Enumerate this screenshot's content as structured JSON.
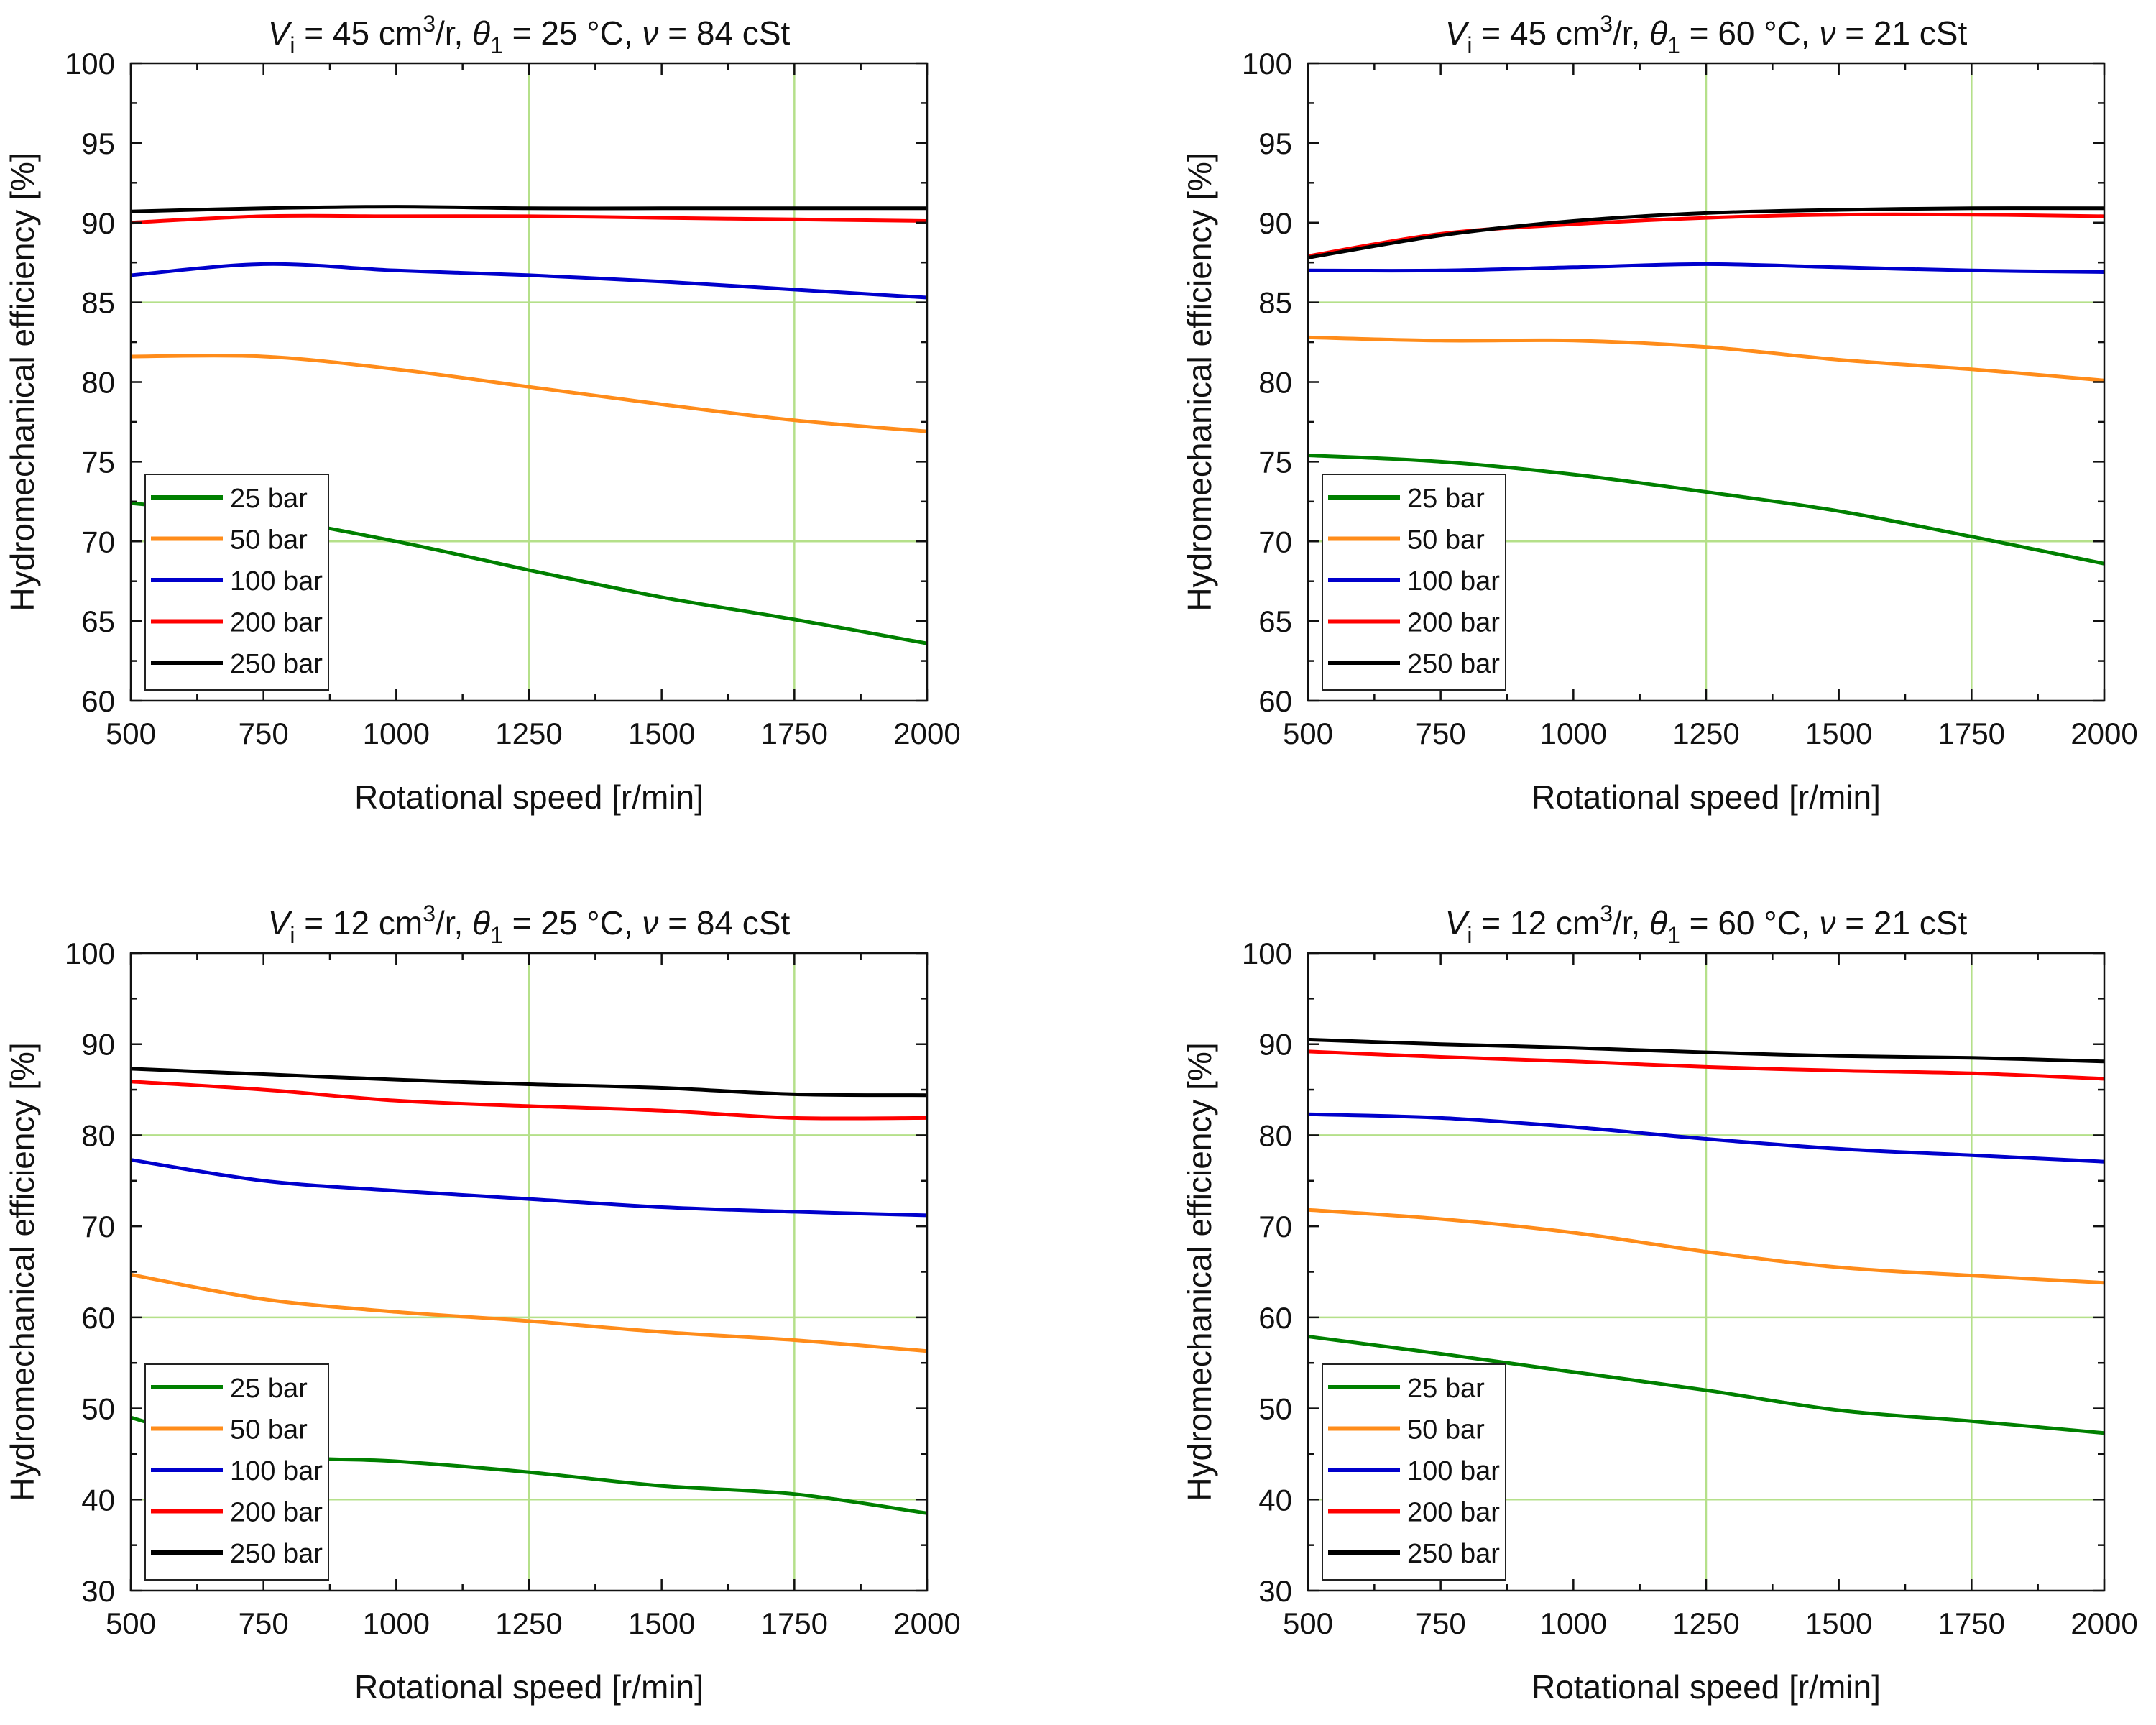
{
  "chart_data": [
    {
      "type": "line",
      "title_parts": [
        "V",
        "i",
        " = 45 cm",
        "3",
        "/r, ",
        "θ",
        "1",
        " = 25 °C, ",
        "ν",
        " = 84 cSt"
      ],
      "xlabel": "Rotational speed [r/min]",
      "ylabel": "Hydromechanical efficiency [%]",
      "xlim": [
        500,
        2000
      ],
      "ylim": [
        60,
        100
      ],
      "x_ticks": [
        500,
        750,
        1000,
        1250,
        1500,
        1750,
        2000
      ],
      "y_ticks": [
        60,
        65,
        70,
        75,
        80,
        85,
        90,
        95,
        100
      ],
      "grid": "vertical lines at 1250 and 1750, horizontal line at 70 and 85",
      "legend_position": "bottom-left",
      "series": [
        {
          "name": "25 bar",
          "color": "#008000",
          "x": [
            500,
            750,
            1000,
            1250,
            1500,
            1750,
            2000
          ],
          "y": [
            72.4,
            71.5,
            70.0,
            68.2,
            66.5,
            65.1,
            63.6
          ]
        },
        {
          "name": "50 bar",
          "color": "#ff8c1a",
          "x": [
            500,
            750,
            1000,
            1250,
            1500,
            1750,
            2000
          ],
          "y": [
            81.6,
            81.6,
            80.8,
            79.7,
            78.6,
            77.6,
            76.9
          ]
        },
        {
          "name": "100 bar",
          "color": "#0000cc",
          "x": [
            500,
            750,
            1000,
            1250,
            1500,
            1750,
            2000
          ],
          "y": [
            86.7,
            87.4,
            87.0,
            86.7,
            86.3,
            85.8,
            85.3
          ]
        },
        {
          "name": "200 bar",
          "color": "#ff0000",
          "x": [
            500,
            750,
            1000,
            1250,
            1500,
            1750,
            2000
          ],
          "y": [
            90.0,
            90.4,
            90.4,
            90.4,
            90.3,
            90.2,
            90.1
          ]
        },
        {
          "name": "250 bar",
          "color": "#000000",
          "x": [
            500,
            750,
            1000,
            1250,
            1500,
            1750,
            2000
          ],
          "y": [
            90.7,
            90.9,
            91.0,
            90.9,
            90.9,
            90.9,
            90.9
          ]
        }
      ]
    },
    {
      "type": "line",
      "title_parts": [
        "V",
        "i",
        " = 45 cm",
        "3",
        "/r, ",
        "θ",
        "1",
        " = 60 °C, ",
        "ν",
        " = 21 cSt"
      ],
      "xlabel": "Rotational speed [r/min]",
      "ylabel": "Hydromechanical efficiency [%]",
      "xlim": [
        500,
        2000
      ],
      "ylim": [
        60,
        100
      ],
      "x_ticks": [
        500,
        750,
        1000,
        1250,
        1500,
        1750,
        2000
      ],
      "y_ticks": [
        60,
        65,
        70,
        75,
        80,
        85,
        90,
        95,
        100
      ],
      "grid": "vertical lines at 1250 and 1750, horizontal line at 70 and 85",
      "legend_position": "bottom-left",
      "series": [
        {
          "name": "25 bar",
          "color": "#008000",
          "x": [
            500,
            750,
            1000,
            1250,
            1500,
            1750,
            2000
          ],
          "y": [
            75.4,
            75.0,
            74.2,
            73.1,
            71.9,
            70.3,
            68.6
          ]
        },
        {
          "name": "50 bar",
          "color": "#ff8c1a",
          "x": [
            500,
            750,
            1000,
            1250,
            1500,
            1750,
            2000
          ],
          "y": [
            82.8,
            82.6,
            82.6,
            82.2,
            81.4,
            80.8,
            80.1
          ]
        },
        {
          "name": "100 bar",
          "color": "#0000cc",
          "x": [
            500,
            750,
            1000,
            1250,
            1500,
            1750,
            2000
          ],
          "y": [
            87.0,
            87.0,
            87.2,
            87.4,
            87.2,
            87.0,
            86.9
          ]
        },
        {
          "name": "200 bar",
          "color": "#ff0000",
          "x": [
            500,
            750,
            1000,
            1250,
            1500,
            1750,
            2000
          ],
          "y": [
            87.9,
            89.3,
            89.9,
            90.3,
            90.5,
            90.5,
            90.4
          ]
        },
        {
          "name": "250 bar",
          "color": "#000000",
          "x": [
            500,
            750,
            1000,
            1250,
            1500,
            1750,
            2000
          ],
          "y": [
            87.8,
            89.2,
            90.1,
            90.6,
            90.8,
            90.9,
            90.9
          ]
        }
      ]
    },
    {
      "type": "line",
      "title_parts": [
        "V",
        "i",
        " = 12 cm",
        "3",
        "/r, ",
        "θ",
        "1",
        " = 25 °C, ",
        "ν",
        " = 84 cSt"
      ],
      "xlabel": "Rotational speed [r/min]",
      "ylabel": "Hydromechanical efficiency [%]",
      "xlim": [
        500,
        2000
      ],
      "ylim": [
        30,
        100
      ],
      "x_ticks": [
        500,
        750,
        1000,
        1250,
        1500,
        1750,
        2000
      ],
      "y_ticks": [
        30,
        40,
        50,
        60,
        70,
        80,
        90,
        100
      ],
      "grid": "vertical lines at 1250 and 1750, horizontal lines at 40, 60 and 80",
      "legend_position": "bottom-left",
      "series": [
        {
          "name": "25 bar",
          "color": "#008000",
          "x": [
            500,
            750,
            1000,
            1250,
            1500,
            1750,
            2000
          ],
          "y": [
            49.0,
            45.0,
            44.2,
            43.0,
            41.5,
            40.6,
            38.5
          ]
        },
        {
          "name": "50 bar",
          "color": "#ff8c1a",
          "x": [
            500,
            750,
            1000,
            1250,
            1500,
            1750,
            2000
          ],
          "y": [
            64.7,
            62.0,
            60.6,
            59.6,
            58.4,
            57.5,
            56.3
          ]
        },
        {
          "name": "100 bar",
          "color": "#0000cc",
          "x": [
            500,
            750,
            1000,
            1250,
            1500,
            1750,
            2000
          ],
          "y": [
            77.3,
            75.0,
            73.9,
            73.0,
            72.1,
            71.6,
            71.2
          ]
        },
        {
          "name": "200 bar",
          "color": "#ff0000",
          "x": [
            500,
            750,
            1000,
            1250,
            1500,
            1750,
            2000
          ],
          "y": [
            85.9,
            85.0,
            83.8,
            83.2,
            82.7,
            81.9,
            81.9
          ]
        },
        {
          "name": "250 bar",
          "color": "#000000",
          "x": [
            500,
            750,
            1000,
            1250,
            1500,
            1750,
            2000
          ],
          "y": [
            87.3,
            86.7,
            86.1,
            85.6,
            85.2,
            84.5,
            84.4
          ]
        }
      ]
    },
    {
      "type": "line",
      "title_parts": [
        "V",
        "i",
        " = 12 cm",
        "3",
        "/r, ",
        "θ",
        "1",
        " = 60 °C, ",
        "ν",
        " = 21 cSt"
      ],
      "xlabel": "Rotational speed [r/min]",
      "ylabel": "Hydromechanical efficiency [%]",
      "xlim": [
        500,
        2000
      ],
      "ylim": [
        30,
        100
      ],
      "x_ticks": [
        500,
        750,
        1000,
        1250,
        1500,
        1750,
        2000
      ],
      "y_ticks": [
        30,
        40,
        50,
        60,
        70,
        80,
        90,
        100
      ],
      "grid": "vertical lines at 1250 and 1750, horizontal lines at 40, 60 and 80",
      "legend_position": "bottom-left",
      "series": [
        {
          "name": "25 bar",
          "color": "#008000",
          "x": [
            500,
            750,
            1000,
            1250,
            1500,
            1750,
            2000
          ],
          "y": [
            57.9,
            56.0,
            54.0,
            52.0,
            49.8,
            48.6,
            47.3
          ]
        },
        {
          "name": "50 bar",
          "color": "#ff8c1a",
          "x": [
            500,
            750,
            1000,
            1250,
            1500,
            1750,
            2000
          ],
          "y": [
            71.8,
            70.8,
            69.3,
            67.2,
            65.5,
            64.6,
            63.8
          ]
        },
        {
          "name": "100 bar",
          "color": "#0000cc",
          "x": [
            500,
            750,
            1000,
            1250,
            1500,
            1750,
            2000
          ],
          "y": [
            82.3,
            81.9,
            80.9,
            79.6,
            78.5,
            77.8,
            77.1
          ]
        },
        {
          "name": "200 bar",
          "color": "#ff0000",
          "x": [
            500,
            750,
            1000,
            1250,
            1500,
            1750,
            2000
          ],
          "y": [
            89.2,
            88.6,
            88.1,
            87.5,
            87.1,
            86.8,
            86.2
          ]
        },
        {
          "name": "250 bar",
          "color": "#000000",
          "x": [
            500,
            750,
            1000,
            1250,
            1500,
            1750,
            2000
          ],
          "y": [
            90.5,
            90.0,
            89.6,
            89.1,
            88.7,
            88.5,
            88.1
          ]
        }
      ]
    }
  ]
}
